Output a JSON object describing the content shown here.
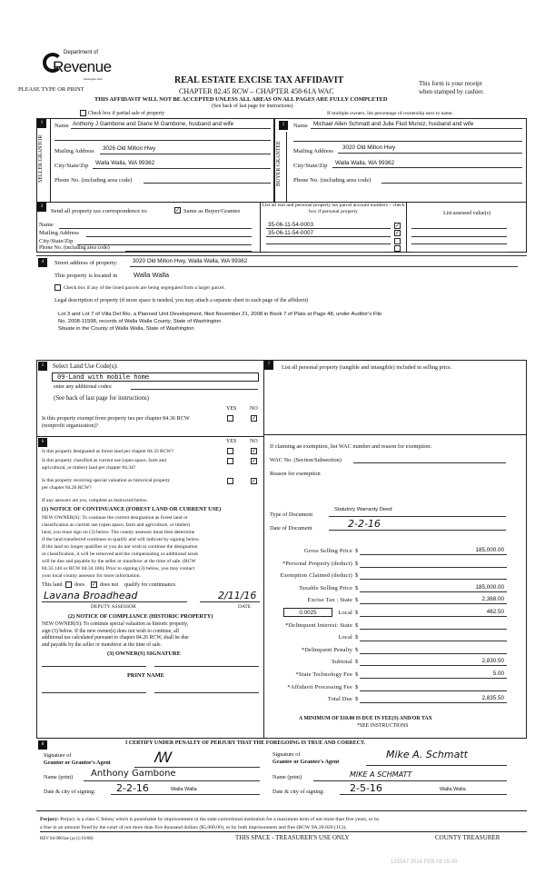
{
  "header": {
    "logo_dept": "Department of",
    "logo_name": "Revenue",
    "logo_state": "Washington State",
    "type_print": "PLEASE TYPE OR PRINT",
    "title": "REAL ESTATE EXCISE TAX AFFIDAVIT",
    "chapter": "CHAPTER 82.45 RCW – CHAPTER 458-61A WAC",
    "warning": "THIS AFFIDAVIT WILL NOT BE ACCEPTED UNLESS ALL AREAS ON ALL PAGES ARE FULLY COMPLETED",
    "see_back": "(See back of last page for instructions)",
    "receipt1": "This form is your receipt",
    "receipt2": "when stamped by cashier.",
    "partial_sale": "Check box if partial sale of property",
    "multiple_owners": "If multiple owners, list percentage of ownership next to name."
  },
  "s1": {
    "num": "1",
    "side": "SELLER GRANTOR",
    "name_label": "Name",
    "name": "Anthony J Gambone and Diane M Gambone, husband and wife",
    "mail_label": "Mailing Address",
    "mail": "3026 Old Milton Hwy",
    "city_label": "City/State/Zip",
    "city": "Walla Walla, WA 99362",
    "phone_label": "Phone No. (including area code)"
  },
  "s2": {
    "num": "2",
    "side": "BUYER GRANTEE",
    "name_label": "Name",
    "name": "Michael Allen Schmatt and Julie Flud Munoz, husband and wife",
    "mail_label": "Mailing Address",
    "mail": "3020 Old Milton Hwy",
    "city_label": "City/State/Zip",
    "city": "Walla Walla, WA 99362",
    "phone_label": "Phone No. (including area code)"
  },
  "s3": {
    "num": "3",
    "send_label": "Send all property tax correspondence to:",
    "same_label": "Same as Buyer/Grantee",
    "same_checked": true,
    "name_label": "Name",
    "mail_label": "Mailing Address",
    "city_label": "City/State/Zip",
    "phone_label": "Phone No. (including area code)",
    "parcel_header": "List all real and personal property tax parcel account numbers – check box if personal property",
    "assessed_header": "List assessed value(s)",
    "parcels": [
      {
        "number": "35-06-11-54-0003",
        "checked": true
      },
      {
        "number": "35-06-11-54-0007",
        "checked": true
      },
      {
        "number": "",
        "checked": false
      },
      {
        "number": "",
        "checked": false
      }
    ]
  },
  "s4": {
    "num": "4",
    "street_label": "Street address of property:",
    "street": "3020 Old Milton Hwy, Walla Walla, WA 99362",
    "located_label": "This property is located in",
    "located": "Walla Walla",
    "segregated": "Check box if any of the listed parcels are being segregated from a larger parcel.",
    "legal_label": "Legal description of property (if more space is needed, you may attach a separate sheet to each page of the affidavit)",
    "legal": [
      "Lot 3 and Lot 7 of Villa Del Rio, a Planned Unit Development, filed November 21, 2008 in Book 7 of Plats at Page 48, under Auditor's File",
      "No. 2008-11598, records of Walla Walla County, State of Washington",
      "Situate in the County of Walla Walla, State of Washington"
    ]
  },
  "s5": {
    "num": "5",
    "select_label": "Select Land Use Code(s):",
    "code": "09-Land with mobile home",
    "additional": "enter any additional codes:",
    "see_back": "(See back of last page for instructions)",
    "yes": "YES",
    "no": "NO",
    "exempt_q": "Is this property exempt from property tax per chapter 84.36 RCW (nonprofit organization)?"
  },
  "s6": {
    "num": "6",
    "yes": "YES",
    "no": "NO",
    "q1": "Is this property designated as forest land per chapter 84.33 RCW?",
    "q2a": "Is this property classified as current use (open space, farm and",
    "q2b": "agricultural, or timber) land per chapter 84.34?",
    "q3a": "Is this property receiving special valuation as historical property",
    "q3b": "per chapter 84.26 RCW?",
    "if_yes": "If any answers are yes, complete as instructed below.",
    "n1_title": "(1) NOTICE OF CONTINUANCE (FOREST LAND OR CURRENT USE)",
    "n1_text": [
      "NEW OWNER(S): To continue the current designation as forest land or",
      "classification as current use (open space, farm and agriculture, or timber)",
      "land, you must sign on (3) below. The county assessor must then determine",
      "if the land transferred continues to qualify and will indicate by signing below.",
      "If the land no longer qualifies or you do not wish to continue the designation",
      "or classification, it will be removed and the compensating or additional taxes",
      "will be due and payable by the seller or transferor at the time of sale. (RCW",
      "84.33.140 or RCW 84.34.108). Prior to signing (3) below, you may contact",
      "your local county assessor for more information."
    ],
    "this_land": "This land",
    "does": "does",
    "does_not": "does not",
    "qualify": "qualify for continuance.",
    "assessor_sig": "Lavana Broadhead",
    "assessor_date": "2/11/16",
    "deputy": "DEPUTY ASSESSOR",
    "date": "DATE",
    "n2_title": "(2) NOTICE OF COMPLIANCE (HISTORIC PROPERTY)",
    "n2_text": [
      "NEW OWNER(S): To continue special valuation as historic property,",
      "sign (3) below. If the new owner(s) does not wish to continue, all",
      "additional tax calculated pursuant to chapter 84.26 RCW, shall be due",
      "and payable by the seller or transferor at the time of sale."
    ],
    "n3_title": "(3) OWNER(S) SIGNATURE",
    "print_name": "PRINT NAME"
  },
  "s7": {
    "num": "7",
    "personal": "List all  personal property (tangible and intangible) included in selling price.",
    "exemption": "If claiming an exemption, list WAC number and reason for exemption:",
    "wac_label": "WAC No. (Section/Subsection)",
    "reason_label": "Reason for exemption",
    "doc_type_label": "Type of Document",
    "doc_type": "Statutory Warranty Deed",
    "doc_date_label": "Date of Document",
    "doc_date": "2-2-16",
    "local_rate": "0.0025",
    "rows": [
      {
        "label": "Gross Selling Price",
        "value": "185,000.00"
      },
      {
        "label": "*Personal Property (deduct)",
        "value": ""
      },
      {
        "label": "Exemption Claimed (deduct)",
        "value": ""
      },
      {
        "label": "Taxable Selling Price",
        "value": "185,000.00"
      },
      {
        "label": "Excise Tax : State",
        "value": "2,368.00"
      },
      {
        "label": "Local",
        "value": "462.50"
      },
      {
        "label": "*Delinquent Interest: State",
        "value": ""
      },
      {
        "label": "Local",
        "value": ""
      },
      {
        "label": "*Delinquent Penalty",
        "value": ""
      },
      {
        "label": "Subtotal",
        "value": "2,830.50"
      },
      {
        "label": "*State Technology Fee",
        "value": "5.00"
      },
      {
        "label": "*Affidavit Processing Fee",
        "value": ""
      },
      {
        "label": "Total Due",
        "value": "2,835.50"
      }
    ],
    "minimum": "A MINIMUM OF $10.00 IS DUE IN FEE(S) AND/OR TAX",
    "see_instr": "*SEE INSTRUCTIONS"
  },
  "s8": {
    "num": "8",
    "certify": "I CERTIFY UNDER PENALTY OF PERJURY THAT THE FOREGOING IS TRUE AND CORRECT.",
    "sig_of": "Signature of",
    "grantor_agent": "Grantor or Grantor's Agent",
    "grantee_agent": "Grantee or Grantee's Agent",
    "name_print": "Name (print)",
    "date_city": "Date & city of signing:",
    "grantor_name": "Anthony Gambone",
    "grantor_date": "2-2-16",
    "grantor_city": "Walla Walla",
    "grantee_sig": "Mike A. Schmatt",
    "grantee_name": "MIKE A SCHMATT",
    "grantee_date": "2-5-16",
    "grantee_city": "Walla Walla"
  },
  "footer": {
    "perjury_label": "Perjury:",
    "perjury": "Perjury is a class C felony which is punishable by imprisonment in the state correctional institution for a maximum term of not more than five years, or by",
    "perjury2": "a fine in an amount fixed by the court of not more than five thousand dollars ($5,000.00), or by both imprisonment and fine (RCW 9A.20.020 (1C)).",
    "rev": "REV 84 0001ae (a) (1/10/08)",
    "treasurer_space": "THIS SPACE - TREASURER'S USE ONLY",
    "county_treasurer": "COUNTY TREASURER",
    "stamp": "125547 2016 FEB 08 15:00"
  }
}
